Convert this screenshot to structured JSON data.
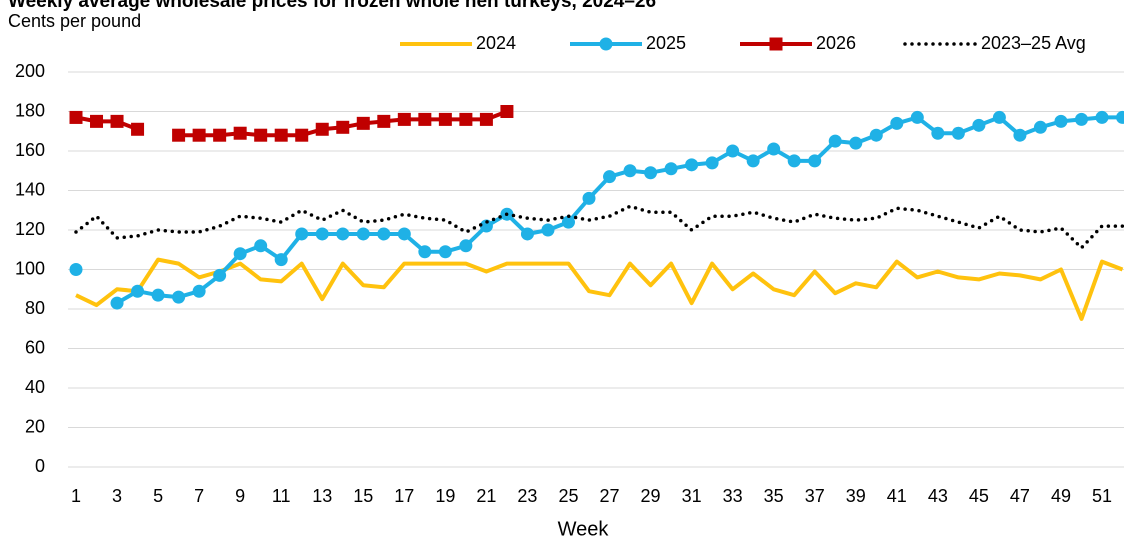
{
  "chart_data": {
    "type": "line",
    "title": "Weekly average wholesale prices for frozen whole hen turkeys, 2024–26",
    "y_label": "Cents per pound",
    "x_label": "Week",
    "categories": [
      1,
      null,
      3,
      null,
      5,
      null,
      7,
      null,
      9,
      null,
      11,
      null,
      13,
      null,
      15,
      null,
      17,
      null,
      19,
      null,
      21,
      null,
      23,
      null,
      25,
      null,
      27,
      null,
      29,
      null,
      31,
      null,
      33,
      null,
      35,
      null,
      37,
      null,
      39,
      null,
      41,
      null,
      43,
      null,
      45,
      null,
      47,
      null,
      49,
      null,
      51,
      null
    ],
    "ylim": [
      0,
      200
    ],
    "yticks": [
      0,
      20,
      40,
      60,
      80,
      100,
      120,
      140,
      160,
      180,
      200
    ],
    "grid": true,
    "legend": "top",
    "series": [
      {
        "name": "2024",
        "color": "#ffc20e",
        "marker": "none",
        "dash": "solid",
        "values": [
          87,
          82,
          90,
          89,
          105,
          103,
          96,
          99,
          103,
          95,
          94,
          103,
          85,
          103,
          92,
          91,
          103,
          103,
          103,
          103,
          99,
          103,
          103,
          103,
          103,
          89,
          87,
          103,
          92,
          103,
          83,
          103,
          90,
          98,
          90,
          87,
          99,
          88,
          93,
          91,
          104,
          96,
          99,
          96,
          95,
          98,
          97,
          95,
          100,
          75,
          104,
          100
        ]
      },
      {
        "name": "2025",
        "color": "#1fb1e6",
        "marker": "circle",
        "dash": "solid",
        "values": [
          100,
          null,
          83,
          89,
          87,
          86,
          89,
          97,
          108,
          112,
          105,
          118,
          118,
          118,
          118,
          118,
          118,
          109,
          109,
          112,
          122,
          128,
          118,
          120,
          124,
          136,
          147,
          150,
          149,
          151,
          153,
          154,
          160,
          155,
          161,
          155,
          155,
          165,
          164,
          168,
          174,
          177,
          169,
          169,
          173,
          177,
          168,
          172,
          175,
          176,
          177,
          177
        ]
      },
      {
        "name": "2026",
        "color": "#c00000",
        "marker": "square",
        "dash": "solid",
        "values": [
          177,
          175,
          175,
          171,
          null,
          168,
          168,
          168,
          169,
          168,
          168,
          168,
          171,
          172,
          174,
          175,
          176,
          176,
          176,
          176,
          176,
          180,
          null,
          null,
          null,
          null,
          null,
          null,
          null,
          null,
          null,
          null,
          null,
          null,
          null,
          null,
          null,
          null,
          null,
          null,
          null,
          null,
          null,
          null,
          null,
          null,
          null,
          null,
          null,
          null,
          null,
          null
        ]
      },
      {
        "name": "2023–25 Avg",
        "color": "#000000",
        "marker": "none",
        "dash": "dotted",
        "values": [
          119,
          127,
          116,
          117,
          120,
          119,
          119,
          122,
          127,
          126,
          124,
          130,
          125,
          130,
          124,
          125,
          128,
          126,
          125,
          119,
          124,
          128,
          126,
          125,
          127,
          125,
          127,
          132,
          129,
          129,
          120,
          127,
          127,
          129,
          126,
          124,
          128,
          126,
          125,
          126,
          131,
          130,
          127,
          124,
          121,
          127,
          120,
          119,
          121,
          111,
          122,
          122
        ]
      }
    ]
  }
}
